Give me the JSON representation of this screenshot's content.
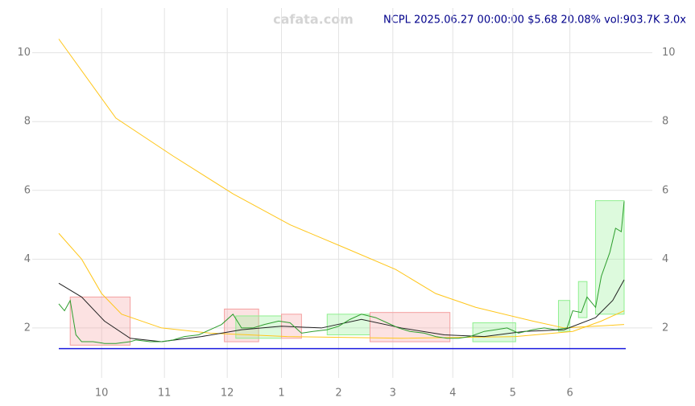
{
  "chart_data": {
    "type": "line",
    "watermark": "cafata.com",
    "title": "NCPL 2025.06.27 00:00:00 $5.68 20.08% vol:903.7K 3.0x",
    "xlim": [
      0,
      198
    ],
    "ylim": [
      0.9,
      11.3
    ],
    "grid": true,
    "xticks": [
      {
        "value": 15,
        "label": "10"
      },
      {
        "value": 37,
        "label": "11"
      },
      {
        "value": 59,
        "label": "12"
      },
      {
        "value": 78,
        "label": "1"
      },
      {
        "value": 98,
        "label": "2"
      },
      {
        "value": 117,
        "label": "3"
      },
      {
        "value": 138,
        "label": "4"
      },
      {
        "value": 159,
        "label": "5"
      },
      {
        "value": 179,
        "label": "6"
      }
    ],
    "yticks": [
      2,
      4,
      6,
      8,
      10
    ],
    "support": {
      "value": 1.4,
      "color": "#1a1adf"
    },
    "zones": [
      {
        "x": [
          4,
          25
        ],
        "y": [
          1.5,
          2.9
        ],
        "color": "#f4a0a0"
      },
      {
        "x": [
          58,
          70
        ],
        "y": [
          1.6,
          2.55
        ],
        "color": "#f4a0a0"
      },
      {
        "x": [
          62,
          78
        ],
        "y": [
          1.7,
          2.35
        ],
        "color": "#8fef8f"
      },
      {
        "x": [
          78,
          85
        ],
        "y": [
          1.7,
          2.4
        ],
        "color": "#f4a0a0"
      },
      {
        "x": [
          94,
          109
        ],
        "y": [
          1.8,
          2.4
        ],
        "color": "#8fef8f"
      },
      {
        "x": [
          109,
          137
        ],
        "y": [
          1.6,
          2.45
        ],
        "color": "#f4a0a0"
      },
      {
        "x": [
          145,
          160
        ],
        "y": [
          1.6,
          2.15
        ],
        "color": "#8fef8f"
      },
      {
        "x": [
          175,
          179
        ],
        "y": [
          1.9,
          2.8
        ],
        "color": "#8fef8f"
      },
      {
        "x": [
          182,
          185
        ],
        "y": [
          2.3,
          3.35
        ],
        "color": "#8fef8f"
      },
      {
        "x": [
          188,
          198
        ],
        "y": [
          2.4,
          5.7
        ],
        "color": "#8fef8f"
      }
    ],
    "series": [
      {
        "color": "#ffc61a",
        "x": [
          0,
          20,
          40,
          61,
          81,
          101,
          118,
          132,
          146,
          166,
          177,
          198
        ],
        "values": [
          10.4,
          8.1,
          7.0,
          5.9,
          5.0,
          4.3,
          3.7,
          3.0,
          2.6,
          2.2,
          2.0,
          2.1
        ]
      },
      {
        "color": "#ffc61a",
        "x": [
          0,
          8,
          15,
          22,
          36,
          53,
          80,
          120,
          160,
          180,
          190,
          198
        ],
        "values": [
          4.75,
          4.0,
          3.0,
          2.4,
          2.0,
          1.85,
          1.75,
          1.7,
          1.75,
          1.9,
          2.2,
          2.5
        ]
      },
      {
        "color": "#222222",
        "x": [
          0,
          8,
          16,
          25,
          36,
          50,
          64,
          78,
          92,
          106,
          120,
          135,
          149,
          163,
          177,
          188,
          194,
          198
        ],
        "values": [
          3.3,
          2.9,
          2.2,
          1.7,
          1.6,
          1.75,
          1.95,
          2.05,
          2.0,
          2.25,
          2.0,
          1.8,
          1.75,
          1.9,
          1.95,
          2.3,
          2.8,
          3.4
        ]
      },
      {
        "color": "#2e9e2e",
        "x": [
          0,
          2,
          4,
          6,
          8,
          12,
          16,
          20,
          25,
          27,
          32,
          36,
          40,
          44,
          49,
          53,
          57,
          61,
          64,
          68,
          72,
          77,
          81,
          85,
          89,
          94,
          98,
          102,
          106,
          111,
          115,
          119,
          123,
          128,
          132,
          136,
          140,
          144,
          149,
          153,
          157,
          161,
          166,
          170,
          174,
          178,
          180,
          183,
          185,
          188,
          190,
          193,
          195,
          197,
          198
        ],
        "values": [
          2.7,
          2.5,
          2.8,
          1.8,
          1.6,
          1.6,
          1.55,
          1.55,
          1.6,
          1.65,
          1.6,
          1.6,
          1.65,
          1.75,
          1.8,
          1.95,
          2.1,
          2.4,
          2.0,
          2.0,
          2.1,
          2.2,
          2.15,
          1.85,
          1.9,
          1.95,
          2.05,
          2.25,
          2.4,
          2.3,
          2.15,
          2.0,
          1.9,
          1.85,
          1.75,
          1.7,
          1.7,
          1.75,
          1.9,
          1.95,
          2.0,
          1.85,
          1.95,
          2.0,
          1.95,
          2.0,
          2.5,
          2.45,
          2.9,
          2.6,
          3.5,
          4.2,
          4.9,
          4.8,
          5.68
        ]
      }
    ]
  }
}
